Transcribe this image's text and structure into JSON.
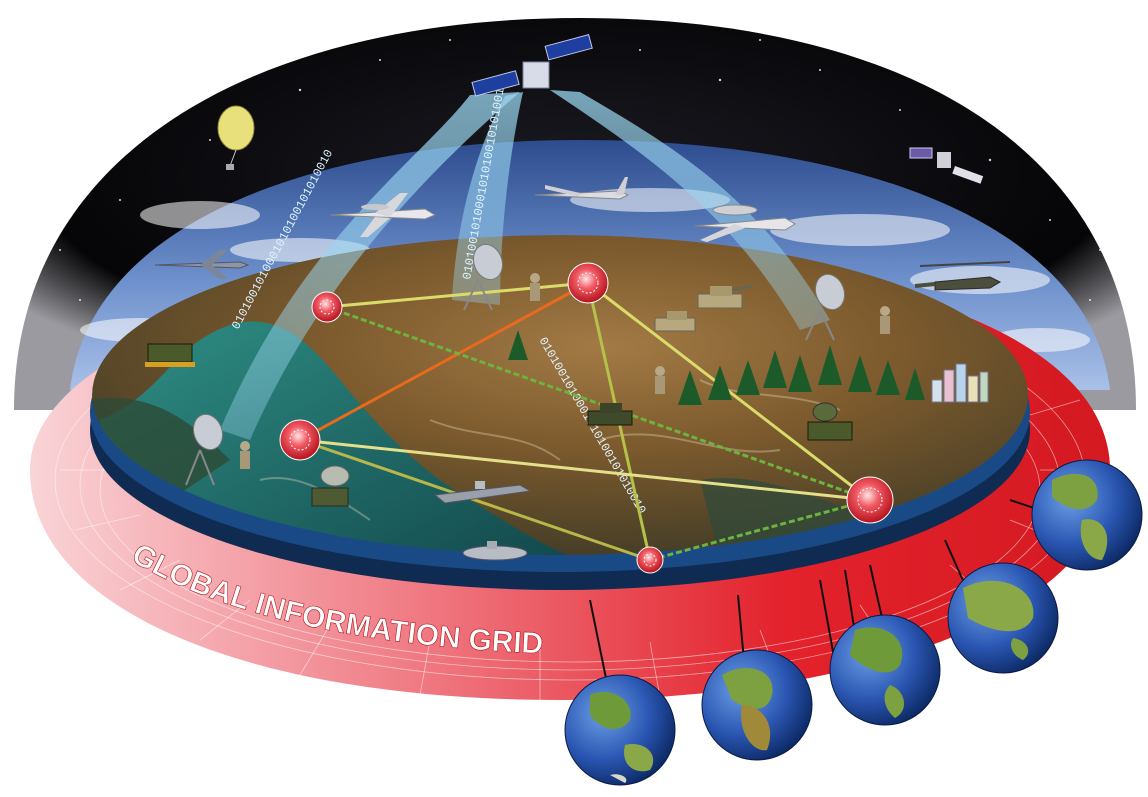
{
  "grid_label": "GLOBAL INFORMATION GRID",
  "binary_text": "0101001010001010100101010010",
  "colors": {
    "space": "#0b0b0f",
    "ring": "#e8242b",
    "ring_light": "#f4a3a8",
    "disk_edge": "#10305a",
    "sky": "#4a6aa8",
    "terrain": "#7a5a2e",
    "water": "#1c6d6a",
    "node": "#d81e2a",
    "link_yellow": "#d9dc6a",
    "link_green": "#6db33f",
    "link_orange": "#e86a1c",
    "beam": "#7fc9e6",
    "ocean": "#1f4fa8",
    "land": "#6f9a3a"
  },
  "icons": [
    "satellite-icon",
    "balloon-icon",
    "small-satellite-icon",
    "awacs-plane-icon",
    "uav-drone-icon",
    "e2-hawkeye-icon",
    "fighter-jet-icon",
    "helicopter-icon",
    "tank-icon",
    "humvee-icon",
    "radar-truck-icon",
    "ship-icon",
    "submarine-icon",
    "satcom-dish-icon",
    "soldier-icon",
    "city-icon",
    "tree-icon",
    "globe-icon"
  ]
}
